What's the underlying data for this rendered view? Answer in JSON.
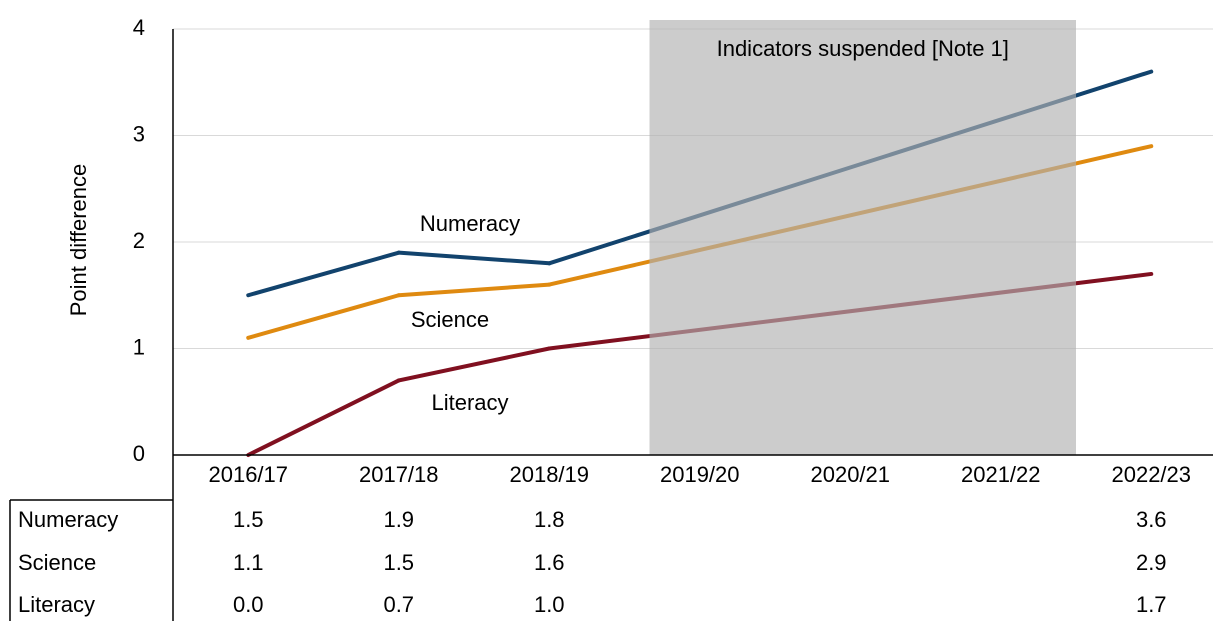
{
  "chart_data": {
    "type": "line",
    "y_label": "Point difference",
    "shaded_label": "Indicators suspended [Note 1]",
    "categories": [
      "2016/17",
      "2017/18",
      "2018/19",
      "2019/20",
      "2020/21",
      "2021/22",
      "2022/23"
    ],
    "series": [
      {
        "name": "Numeracy",
        "color": "#12436d",
        "values": [
          1.5,
          1.9,
          1.8,
          null,
          null,
          null,
          3.6
        ],
        "value_labels": [
          "1.5",
          "1.9",
          "1.8",
          null,
          null,
          null,
          "3.6"
        ]
      },
      {
        "name": "Science",
        "color": "#df8a10",
        "values": [
          1.1,
          1.5,
          1.6,
          null,
          null,
          null,
          2.9
        ],
        "value_labels": [
          "1.1",
          "1.5",
          "1.6",
          null,
          null,
          null,
          "2.9"
        ]
      },
      {
        "name": "Literacy",
        "color": "#801020",
        "values": [
          0.0,
          0.7,
          1.0,
          null,
          null,
          null,
          1.7
        ],
        "value_labels": [
          "0.0",
          "0.7",
          "1.0",
          null,
          null,
          null,
          "1.7"
        ]
      }
    ],
    "ylim": [
      0,
      4
    ],
    "yticks": [
      0,
      1,
      2,
      3,
      4
    ],
    "grid": true
  }
}
